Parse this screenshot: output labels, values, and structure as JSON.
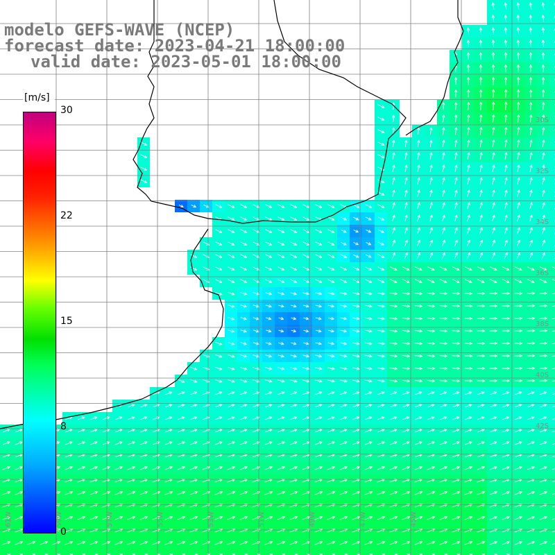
{
  "title": {
    "line1": "modelo GEFS-WAVE (NCEP)",
    "line2": "forecast date: 2023-04-21 18:00:00",
    "line3": "valid date: 2023-05-01 18:00:00"
  },
  "colorbar": {
    "unit": "[m/s]",
    "min": 0,
    "max": 30,
    "ticks": [
      "30",
      "22",
      "15",
      "8",
      "0"
    ],
    "tick_values": [
      30,
      22,
      15,
      8,
      0
    ]
  },
  "map": {
    "lat_labels": [
      "30S",
      "32S",
      "34S",
      "36S",
      "38S",
      "40S",
      "42S"
    ],
    "lon_labels": [
      "61W",
      "59W",
      "57W",
      "55W",
      "53W",
      "51W",
      "49W",
      "47W",
      "45W"
    ]
  },
  "palette": {
    "land": "#ffffff",
    "coast": "#000000",
    "grid": "#808080",
    "arrow": "#ffffff"
  }
}
